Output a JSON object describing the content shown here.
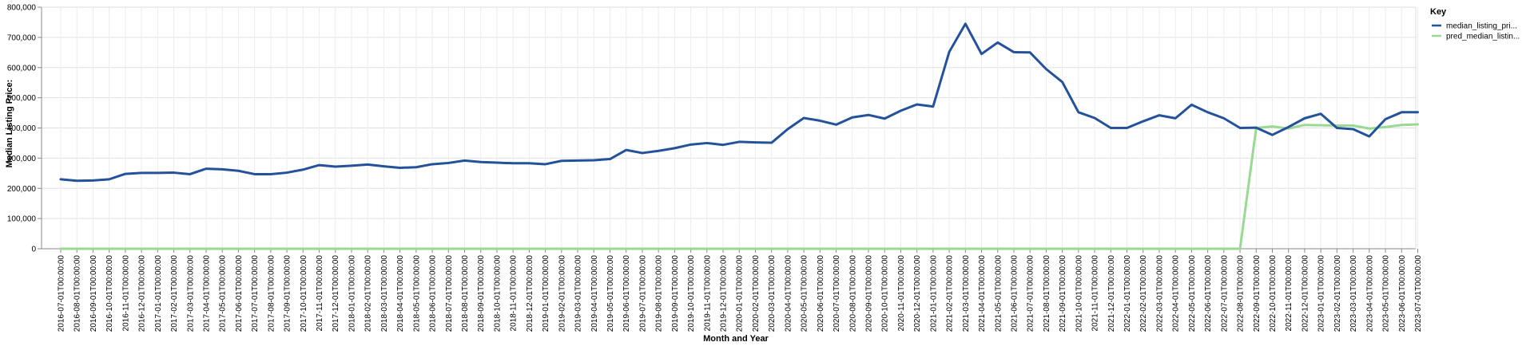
{
  "chart_data": {
    "type": "line",
    "xlabel": "Month and Year",
    "ylabel": "Median Listing Price:",
    "ylim": [
      0,
      800000
    ],
    "y_ticks": [
      "0",
      "100,000",
      "200,000",
      "300,000",
      "400,000",
      "500,000",
      "600,000",
      "700,000",
      "800,000"
    ],
    "grid": true,
    "legend": {
      "title": "Key",
      "position": "right"
    },
    "x": [
      "2016-07-01T00:00:00",
      "2016-08-01T00:00:00",
      "2016-09-01T00:00:00",
      "2016-10-01T00:00:00",
      "2016-11-01T00:00:00",
      "2016-12-01T00:00:00",
      "2017-01-01T00:00:00",
      "2017-02-01T00:00:00",
      "2017-03-01T00:00:00",
      "2017-04-01T00:00:00",
      "2017-05-01T00:00:00",
      "2017-06-01T00:00:00",
      "2017-07-01T00:00:00",
      "2017-08-01T00:00:00",
      "2017-09-01T00:00:00",
      "2017-10-01T00:00:00",
      "2017-11-01T00:00:00",
      "2017-12-01T00:00:00",
      "2018-01-01T00:00:00",
      "2018-02-01T00:00:00",
      "2018-03-01T00:00:00",
      "2018-04-01T00:00:00",
      "2018-05-01T00:00:00",
      "2018-06-01T00:00:00",
      "2018-07-01T00:00:00",
      "2018-08-01T00:00:00",
      "2018-09-01T00:00:00",
      "2018-10-01T00:00:00",
      "2018-11-01T00:00:00",
      "2018-12-01T00:00:00",
      "2019-01-01T00:00:00",
      "2019-02-01T00:00:00",
      "2019-03-01T00:00:00",
      "2019-04-01T00:00:00",
      "2019-05-01T00:00:00",
      "2019-06-01T00:00:00",
      "2019-07-01T00:00:00",
      "2019-08-01T00:00:00",
      "2019-09-01T00:00:00",
      "2019-10-01T00:00:00",
      "2019-11-01T00:00:00",
      "2019-12-01T00:00:00",
      "2020-01-01T00:00:00",
      "2020-02-01T00:00:00",
      "2020-03-01T00:00:00",
      "2020-04-01T00:00:00",
      "2020-05-01T00:00:00",
      "2020-06-01T00:00:00",
      "2020-07-01T00:00:00",
      "2020-08-01T00:00:00",
      "2020-09-01T00:00:00",
      "2020-10-01T00:00:00",
      "2020-11-01T00:00:00",
      "2020-12-01T00:00:00",
      "2021-01-01T00:00:00",
      "2021-02-01T00:00:00",
      "2021-03-01T00:00:00",
      "2021-04-01T00:00:00",
      "2021-05-01T00:00:00",
      "2021-06-01T00:00:00",
      "2021-07-01T00:00:00",
      "2021-08-01T00:00:00",
      "2021-09-01T00:00:00",
      "2021-10-01T00:00:00",
      "2021-11-01T00:00:00",
      "2021-12-01T00:00:00",
      "2022-01-01T00:00:00",
      "2022-02-01T00:00:00",
      "2022-03-01T00:00:00",
      "2022-04-01T00:00:00",
      "2022-05-01T00:00:00",
      "2022-06-01T00:00:00",
      "2022-07-01T00:00:00",
      "2022-08-01T00:00:00",
      "2022-09-01T00:00:00",
      "2022-10-01T00:00:00",
      "2022-11-01T00:00:00",
      "2022-12-01T00:00:00",
      "2023-01-01T00:00:00",
      "2023-02-01T00:00:00",
      "2023-03-01T00:00:00",
      "2023-04-01T00:00:00",
      "2023-05-01T00:00:00",
      "2023-06-01T00:00:00",
      "2023-07-01T00:00:00"
    ],
    "series": [
      {
        "name": "median_listing_pri...",
        "color": "#24529a",
        "values": [
          230000,
          225000,
          226000,
          230000,
          248000,
          251000,
          251000,
          252000,
          247000,
          265000,
          263000,
          258000,
          247000,
          247000,
          252000,
          262000,
          277000,
          272000,
          275000,
          279000,
          273000,
          268000,
          270000,
          280000,
          284000,
          292000,
          287000,
          285000,
          283000,
          283000,
          280000,
          291000,
          292000,
          293000,
          297000,
          327000,
          317000,
          324000,
          333000,
          345000,
          350000,
          344000,
          354000,
          352000,
          351000,
          396000,
          433000,
          424000,
          411000,
          435000,
          443000,
          431000,
          457000,
          478000,
          471000,
          652000,
          745000,
          645000,
          683000,
          651000,
          650000,
          595000,
          552000,
          452000,
          433000,
          400000,
          400000,
          422000,
          442000,
          432000,
          477000,
          452000,
          432000,
          400000,
          401000,
          377000,
          403000,
          432000,
          447000,
          400000,
          396000,
          372000,
          429000,
          452000,
          452000
        ]
      },
      {
        "name": "pred_median_listin...",
        "color": "#98d993",
        "values": [
          0,
          0,
          0,
          0,
          0,
          0,
          0,
          0,
          0,
          0,
          0,
          0,
          0,
          0,
          0,
          0,
          0,
          0,
          0,
          0,
          0,
          0,
          0,
          0,
          0,
          0,
          0,
          0,
          0,
          0,
          0,
          0,
          0,
          0,
          0,
          0,
          0,
          0,
          0,
          0,
          0,
          0,
          0,
          0,
          0,
          0,
          0,
          0,
          0,
          0,
          0,
          0,
          0,
          0,
          0,
          0,
          0,
          0,
          0,
          0,
          0,
          0,
          0,
          0,
          0,
          0,
          0,
          0,
          0,
          0,
          0,
          0,
          0,
          0,
          400000,
          405000,
          398000,
          410000,
          409000,
          408000,
          408000,
          398000,
          403000,
          410000,
          412000
        ]
      }
    ]
  }
}
